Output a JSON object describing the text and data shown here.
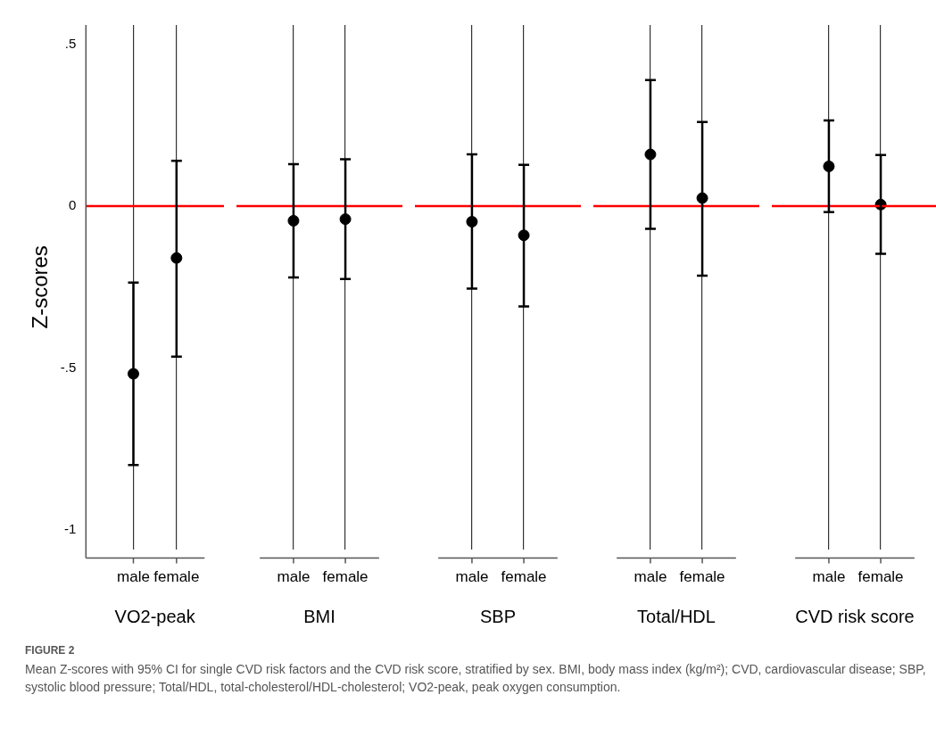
{
  "chart_data": [
    {
      "type": "scatter",
      "categories": [
        "male",
        "female"
      ],
      "values": [
        -0.518,
        -0.16
      ],
      "errors": [
        [
          -0.8,
          -0.236
        ],
        [
          -0.465,
          0.14
        ]
      ],
      "color": "#000000",
      "marker": "circle",
      "xlabel": "VO2-peak",
      "ylabel": "Z-scores",
      "ylim": [
        -1.06,
        0.56
      ],
      "yticks": [
        {
          "value": -1,
          "label": "-1"
        },
        {
          "value": -0.5,
          "label": "-.5"
        },
        0,
        {
          "value": 0.5,
          "label": ".5"
        }
      ],
      "grid": "x",
      "ref_lines": [
        {
          "axis": "y",
          "value": 0,
          "color": "#ff0000"
        }
      ],
      "annotations": [
        "FIGURE 2",
        "Mean Z-scores with 95% CI for single CVD risk factors and the CVD risk score, stratified by sex. BMI, body mass index (kg/m²); CVD, cardiovascular disease; SBP, systolic blood pressure; Total/HDL, total-cholesterol/HDL-cholesterol; VO2-peak, peak oxygen consumption."
      ]
    },
    {
      "type": "scatter",
      "categories": [
        "male",
        "female"
      ],
      "values": [
        -0.045,
        -0.04
      ],
      "errors": [
        [
          -0.22,
          0.13
        ],
        [
          -0.225,
          0.145
        ]
      ],
      "color": "#000000",
      "marker": "circle",
      "xlabel": "BMI",
      "ylim": [
        -1.06,
        0.56
      ],
      "tick_labels": "x",
      "grid": "x",
      "ref_lines": [
        {
          "axis": "y",
          "value": 0,
          "color": "#ff0000"
        }
      ]
    },
    {
      "type": "scatter",
      "categories": [
        "male",
        "female"
      ],
      "values": [
        -0.048,
        -0.09
      ],
      "errors": [
        [
          -0.255,
          0.16
        ],
        [
          -0.31,
          0.128
        ]
      ],
      "color": "#000000",
      "marker": "circle",
      "xlabel": "SBP",
      "ylim": [
        -1.06,
        0.56
      ],
      "tick_labels": "x",
      "grid": "x",
      "ref_lines": [
        {
          "axis": "y",
          "value": 0,
          "color": "#ff0000"
        }
      ]
    },
    {
      "type": "scatter",
      "categories": [
        "male",
        "female"
      ],
      "values": [
        0.16,
        0.025
      ],
      "errors": [
        [
          -0.07,
          0.39
        ],
        [
          -0.215,
          0.26
        ]
      ],
      "color": "#000000",
      "marker": "circle",
      "xlabel": "Total/HDL",
      "ylim": [
        -1.06,
        0.56
      ],
      "tick_labels": "x",
      "grid": "x",
      "ref_lines": [
        {
          "axis": "y",
          "value": 0,
          "color": "#ff0000"
        }
      ]
    },
    {
      "type": "scatter",
      "categories": [
        "male",
        "female"
      ],
      "values": [
        0.123,
        0.005
      ],
      "errors": [
        [
          -0.018,
          0.265
        ],
        [
          -0.147,
          0.158
        ]
      ],
      "color": "#000000",
      "marker": "circle",
      "xlabel": "CVD risk score",
      "ylim": [
        -1.06,
        0.56
      ],
      "tick_labels": "x",
      "grid": "x",
      "ref_lines": [
        {
          "axis": "y",
          "value": 0,
          "color": "#ff0000"
        }
      ]
    }
  ]
}
